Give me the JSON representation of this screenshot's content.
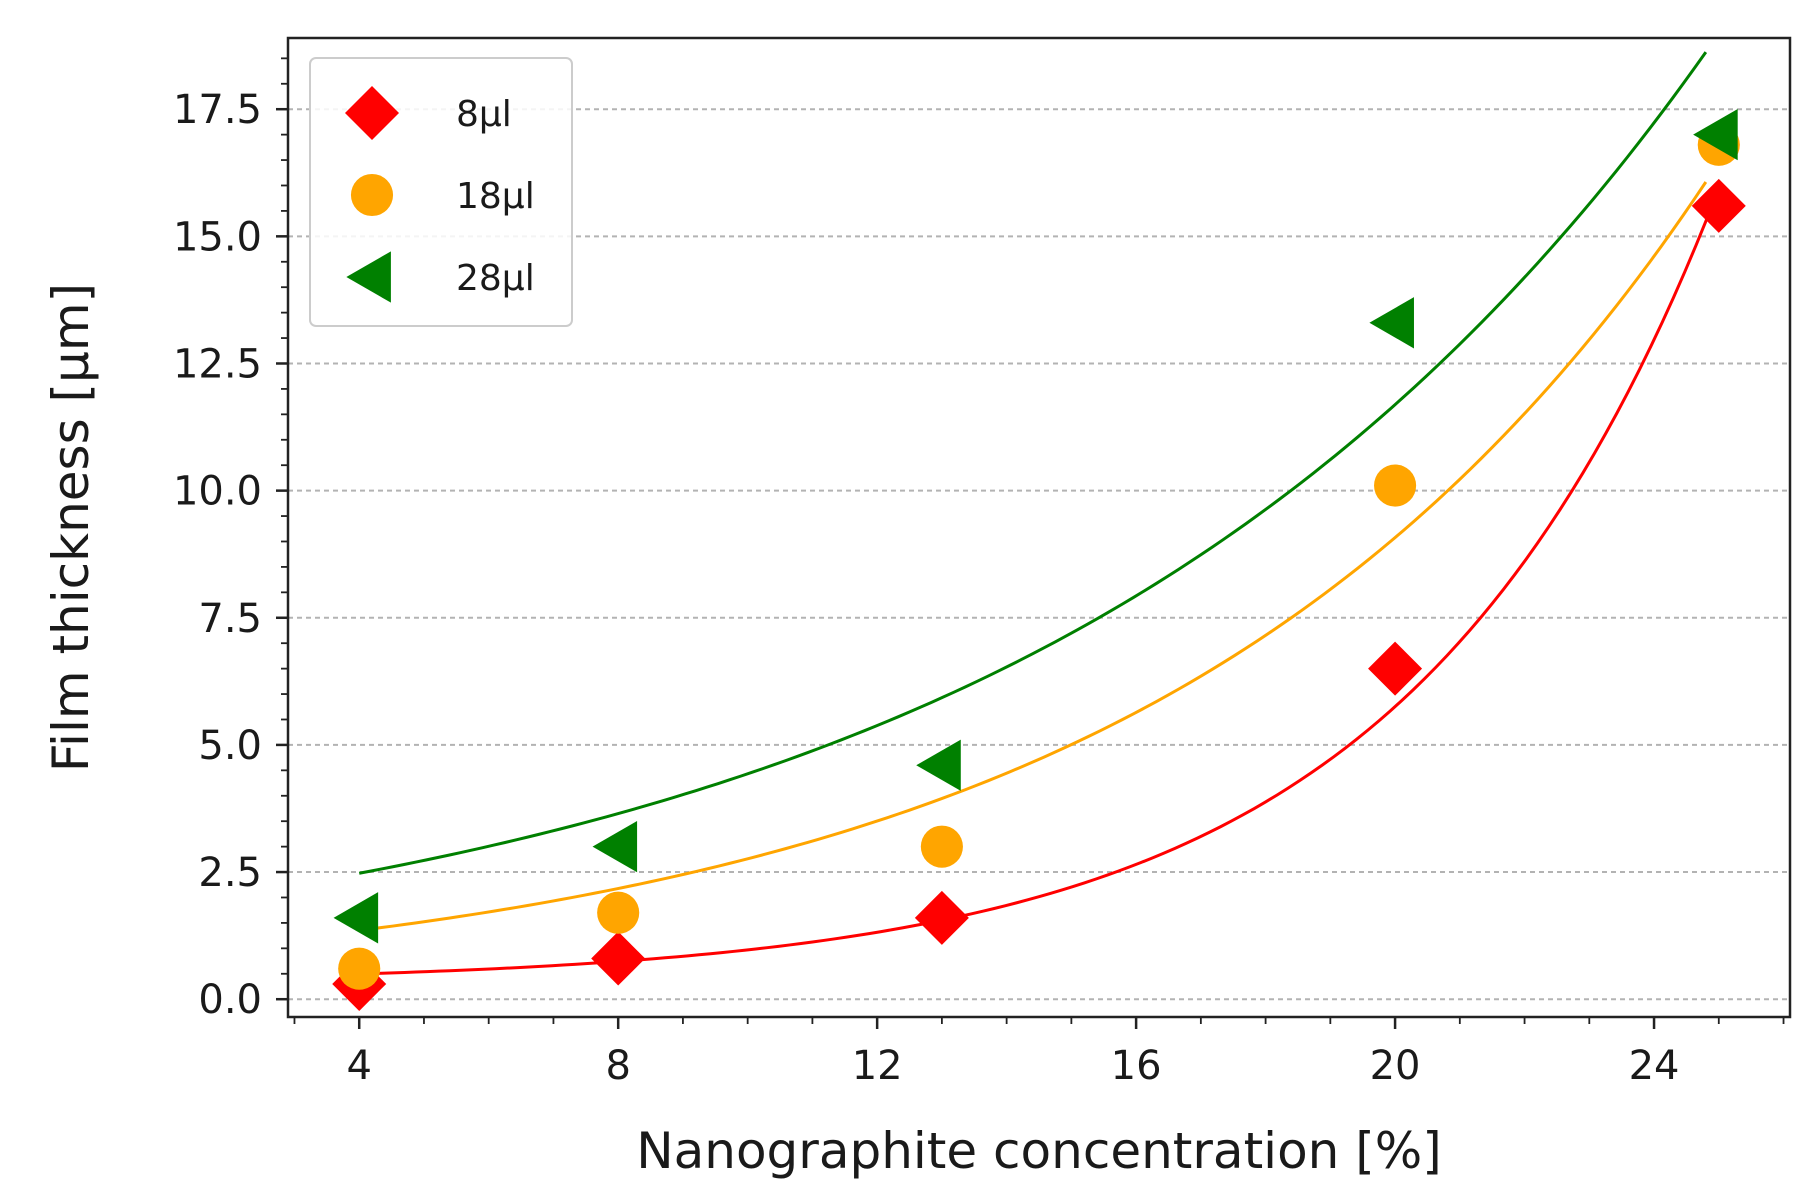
{
  "chart_data": {
    "type": "scatter",
    "title": "",
    "xlabel": "Nanographite concentration [%]",
    "ylabel": "Film thickness [μm]",
    "xlim": [
      2.9,
      26.1
    ],
    "ylim": [
      -0.35,
      18.9
    ],
    "x_ticks": [
      4,
      8,
      12,
      16,
      20,
      24
    ],
    "x_tick_labels": [
      "4",
      "8",
      "12",
      "16",
      "20",
      "24"
    ],
    "y_ticks": [
      0,
      2.5,
      5,
      7.5,
      10,
      12.5,
      15,
      17.5
    ],
    "y_tick_labels": [
      "0.0",
      "2.5",
      "5.0",
      "7.5",
      "10.0",
      "12.5",
      "15.0",
      "17.5"
    ],
    "grid": "horizontal dashed",
    "legend_position": "top-left",
    "series": [
      {
        "name": "8μl",
        "marker": "diamond",
        "color": "#ff0000",
        "x": [
          4,
          8,
          13,
          20,
          25
        ],
        "y": [
          0.3,
          0.8,
          1.6,
          6.5,
          15.6
        ],
        "fit": {
          "x_start": 4,
          "x_end": 25,
          "a": 0.08,
          "b": 0.211,
          "c": 0.31
        }
      },
      {
        "name": "18μl",
        "marker": "circle",
        "color": "#ffa500",
        "x": [
          4,
          8,
          13,
          20,
          25
        ],
        "y": [
          0.6,
          1.7,
          3.0,
          10.1,
          16.8
        ],
        "fit": {
          "x_start": 4,
          "x_end": 24.8,
          "a": 0.84,
          "b": 0.119,
          "c": 0.0
        }
      },
      {
        "name": "28μl",
        "marker": "triangle-left",
        "color": "#008000",
        "x": [
          4,
          8,
          13,
          20,
          25
        ],
        "y": [
          1.6,
          3.0,
          4.6,
          13.3,
          17.0
        ],
        "fit": {
          "x_start": 4,
          "x_end": 24.8,
          "a": 1.68,
          "b": 0.097,
          "c": 0.0
        }
      }
    ]
  }
}
